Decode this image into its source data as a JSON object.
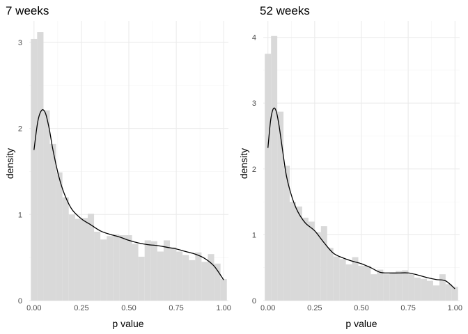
{
  "chart_data": [
    {
      "type": "histogram+density",
      "title": "7 weeks",
      "xlabel": "p value",
      "ylabel": "density",
      "xlim": [
        -0.025,
        1.025
      ],
      "ylim": [
        0,
        3.25
      ],
      "x_ticks": [
        "0.00",
        "0.25",
        "0.50",
        "0.75",
        "1.00"
      ],
      "x_tick_values": [
        0,
        0.25,
        0.5,
        0.75,
        1.0
      ],
      "y_ticks": [
        "0",
        "1",
        "2",
        "3"
      ],
      "y_tick_values": [
        0,
        1,
        2,
        3
      ],
      "bins": [
        {
          "x0": -0.0167,
          "x1": 0.0167,
          "y": 3.04
        },
        {
          "x0": 0.0167,
          "x1": 0.05,
          "y": 3.12
        },
        {
          "x0": 0.05,
          "x1": 0.0833,
          "y": 2.21
        },
        {
          "x0": 0.0833,
          "x1": 0.1167,
          "y": 1.82
        },
        {
          "x0": 0.1167,
          "x1": 0.15,
          "y": 1.49
        },
        {
          "x0": 0.15,
          "x1": 0.1833,
          "y": 1.2
        },
        {
          "x0": 0.1833,
          "x1": 0.2167,
          "y": 1.0
        },
        {
          "x0": 0.2167,
          "x1": 0.25,
          "y": 0.95
        },
        {
          "x0": 0.25,
          "x1": 0.2833,
          "y": 0.96
        },
        {
          "x0": 0.2833,
          "x1": 0.3167,
          "y": 1.01
        },
        {
          "x0": 0.3167,
          "x1": 0.35,
          "y": 0.8
        },
        {
          "x0": 0.35,
          "x1": 0.3833,
          "y": 0.71
        },
        {
          "x0": 0.3833,
          "x1": 0.4167,
          "y": 0.75
        },
        {
          "x0": 0.4167,
          "x1": 0.45,
          "y": 0.77
        },
        {
          "x0": 0.45,
          "x1": 0.4833,
          "y": 0.76
        },
        {
          "x0": 0.4833,
          "x1": 0.5167,
          "y": 0.76
        },
        {
          "x0": 0.5167,
          "x1": 0.55,
          "y": 0.66
        },
        {
          "x0": 0.55,
          "x1": 0.5833,
          "y": 0.51
        },
        {
          "x0": 0.5833,
          "x1": 0.6167,
          "y": 0.7
        },
        {
          "x0": 0.6167,
          "x1": 0.65,
          "y": 0.69
        },
        {
          "x0": 0.65,
          "x1": 0.6833,
          "y": 0.57
        },
        {
          "x0": 0.6833,
          "x1": 0.7167,
          "y": 0.7
        },
        {
          "x0": 0.7167,
          "x1": 0.75,
          "y": 0.62
        },
        {
          "x0": 0.75,
          "x1": 0.7833,
          "y": 0.57
        },
        {
          "x0": 0.7833,
          "x1": 0.8167,
          "y": 0.53
        },
        {
          "x0": 0.8167,
          "x1": 0.85,
          "y": 0.47
        },
        {
          "x0": 0.85,
          "x1": 0.8833,
          "y": 0.56
        },
        {
          "x0": 0.8833,
          "x1": 0.9167,
          "y": 0.45
        },
        {
          "x0": 0.9167,
          "x1": 0.95,
          "y": 0.54
        },
        {
          "x0": 0.95,
          "x1": 0.9833,
          "y": 0.43
        },
        {
          "x0": 0.9833,
          "x1": 1.0167,
          "y": 0.25
        }
      ],
      "density": {
        "x": [
          0.0,
          0.02,
          0.04,
          0.06,
          0.08,
          0.1,
          0.13,
          0.16,
          0.2,
          0.25,
          0.3,
          0.35,
          0.4,
          0.45,
          0.5,
          0.55,
          0.6,
          0.65,
          0.7,
          0.75,
          0.8,
          0.85,
          0.9,
          0.95,
          1.0
        ],
        "y": [
          1.75,
          2.08,
          2.21,
          2.18,
          2.0,
          1.75,
          1.45,
          1.24,
          1.06,
          0.95,
          0.88,
          0.81,
          0.77,
          0.74,
          0.7,
          0.67,
          0.65,
          0.64,
          0.62,
          0.6,
          0.57,
          0.54,
          0.49,
          0.4,
          0.24
        ]
      }
    },
    {
      "type": "histogram+density",
      "title": "52 weeks",
      "xlabel": "p value",
      "ylabel": "density",
      "xlim": [
        -0.025,
        1.025
      ],
      "ylim": [
        0,
        4.25
      ],
      "x_ticks": [
        "0.00",
        "0.25",
        "0.50",
        "0.75",
        "1.00"
      ],
      "x_tick_values": [
        0,
        0.25,
        0.5,
        0.75,
        1.0
      ],
      "y_ticks": [
        "0",
        "1",
        "2",
        "3",
        "4"
      ],
      "y_tick_values": [
        0,
        1,
        2,
        3,
        4
      ],
      "bins": [
        {
          "x0": -0.0167,
          "x1": 0.0167,
          "y": 3.75
        },
        {
          "x0": 0.0167,
          "x1": 0.05,
          "y": 4.02
        },
        {
          "x0": 0.05,
          "x1": 0.0833,
          "y": 2.87
        },
        {
          "x0": 0.0833,
          "x1": 0.1167,
          "y": 2.05
        },
        {
          "x0": 0.1167,
          "x1": 0.15,
          "y": 1.5
        },
        {
          "x0": 0.15,
          "x1": 0.1833,
          "y": 1.43
        },
        {
          "x0": 0.1833,
          "x1": 0.2167,
          "y": 1.26
        },
        {
          "x0": 0.2167,
          "x1": 0.25,
          "y": 1.2
        },
        {
          "x0": 0.25,
          "x1": 0.2833,
          "y": 1.04
        },
        {
          "x0": 0.2833,
          "x1": 0.3167,
          "y": 1.13
        },
        {
          "x0": 0.3167,
          "x1": 0.35,
          "y": 0.8
        },
        {
          "x0": 0.35,
          "x1": 0.3833,
          "y": 0.67
        },
        {
          "x0": 0.3833,
          "x1": 0.4167,
          "y": 0.63
        },
        {
          "x0": 0.4167,
          "x1": 0.45,
          "y": 0.55
        },
        {
          "x0": 0.45,
          "x1": 0.4833,
          "y": 0.66
        },
        {
          "x0": 0.4833,
          "x1": 0.5167,
          "y": 0.53
        },
        {
          "x0": 0.5167,
          "x1": 0.55,
          "y": 0.53
        },
        {
          "x0": 0.55,
          "x1": 0.5833,
          "y": 0.4
        },
        {
          "x0": 0.5833,
          "x1": 0.6167,
          "y": 0.47
        },
        {
          "x0": 0.6167,
          "x1": 0.65,
          "y": 0.4
        },
        {
          "x0": 0.65,
          "x1": 0.6833,
          "y": 0.42
        },
        {
          "x0": 0.6833,
          "x1": 0.7167,
          "y": 0.45
        },
        {
          "x0": 0.7167,
          "x1": 0.75,
          "y": 0.46
        },
        {
          "x0": 0.75,
          "x1": 0.7833,
          "y": 0.4
        },
        {
          "x0": 0.7833,
          "x1": 0.8167,
          "y": 0.35
        },
        {
          "x0": 0.8167,
          "x1": 0.85,
          "y": 0.33
        },
        {
          "x0": 0.85,
          "x1": 0.8833,
          "y": 0.3
        },
        {
          "x0": 0.8833,
          "x1": 0.9167,
          "y": 0.23
        },
        {
          "x0": 0.9167,
          "x1": 0.95,
          "y": 0.4
        },
        {
          "x0": 0.95,
          "x1": 0.9833,
          "y": 0.25
        },
        {
          "x0": 0.9833,
          "x1": 1.0167,
          "y": 0.21
        }
      ],
      "density": {
        "x": [
          0.0,
          0.015,
          0.03,
          0.045,
          0.06,
          0.08,
          0.1,
          0.13,
          0.16,
          0.2,
          0.25,
          0.3,
          0.35,
          0.4,
          0.45,
          0.5,
          0.55,
          0.6,
          0.65,
          0.7,
          0.75,
          0.8,
          0.85,
          0.9,
          0.95,
          1.0
        ],
        "y": [
          2.32,
          2.75,
          2.92,
          2.87,
          2.65,
          2.25,
          1.88,
          1.56,
          1.35,
          1.18,
          1.06,
          0.88,
          0.72,
          0.65,
          0.6,
          0.56,
          0.5,
          0.43,
          0.42,
          0.42,
          0.42,
          0.39,
          0.35,
          0.32,
          0.3,
          0.18
        ]
      }
    }
  ]
}
